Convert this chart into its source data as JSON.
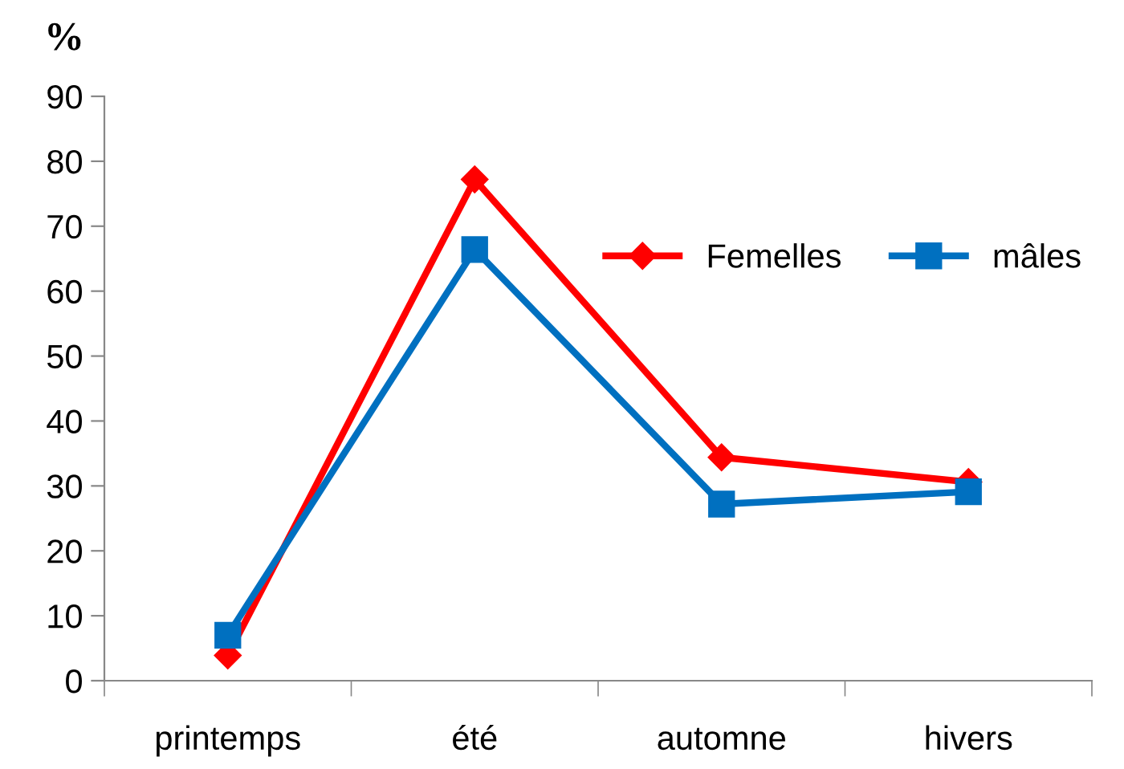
{
  "chart_data": {
    "type": "line",
    "ylabel": "%",
    "categories": [
      "printemps",
      "été",
      "automne",
      "hivers"
    ],
    "series": [
      {
        "name": "Femelles",
        "color": "#ff0000",
        "marker": "diamond",
        "values": [
          3.9,
          77.2,
          34.4,
          30.6
        ]
      },
      {
        "name": "mâles",
        "color": "#0070c0",
        "marker": "square",
        "values": [
          7.0,
          66.4,
          27.2,
          29.1
        ]
      }
    ],
    "ylim": [
      0,
      90
    ],
    "yticks": [
      0,
      10,
      20,
      30,
      40,
      50,
      60,
      70,
      80,
      90
    ],
    "grid": false,
    "legend": "top right"
  }
}
